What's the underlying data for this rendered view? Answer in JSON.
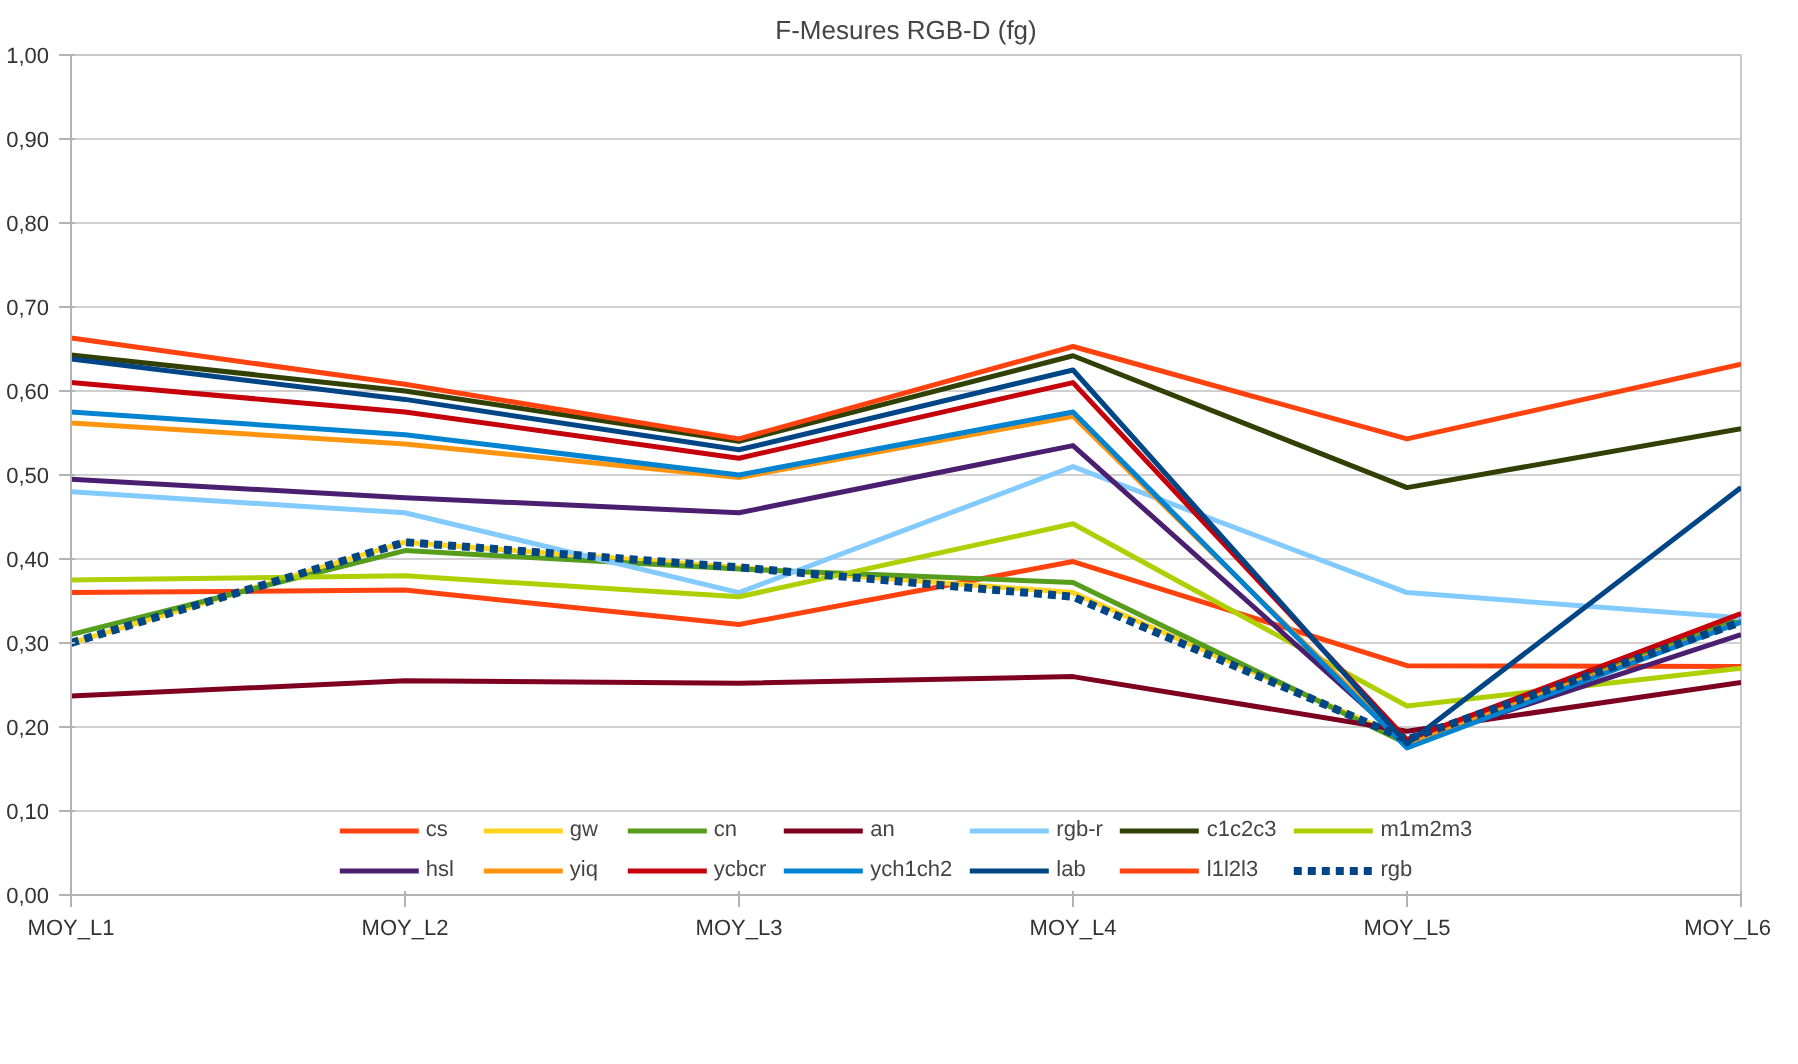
{
  "chart_data": {
    "type": "line",
    "title": "F-Mesures RGB-D (fg)",
    "categories": [
      "MOY_L1",
      "MOY_L2",
      "MOY_L3",
      "MOY_L4",
      "MOY_L5",
      "MOY_L6"
    ],
    "ylim": [
      0,
      1
    ],
    "yticks": [
      {
        "value": 0,
        "label": "0,00"
      },
      {
        "value": 0.1,
        "label": "0,10"
      },
      {
        "value": 0.2,
        "label": "0,20"
      },
      {
        "value": 0.3,
        "label": "0,30"
      },
      {
        "value": 0.4,
        "label": "0,40"
      },
      {
        "value": 0.5,
        "label": "0,50"
      },
      {
        "value": 0.6,
        "label": "0,60"
      },
      {
        "value": 0.7,
        "label": "0,70"
      },
      {
        "value": 0.8,
        "label": "0,80"
      },
      {
        "value": 0.9,
        "label": "0,90"
      },
      {
        "value": 1,
        "label": "1,00"
      }
    ],
    "grid": "y",
    "legend": "bottom",
    "marker": "none",
    "series": [
      {
        "name": "cs",
        "color": "#ff420e",
        "values": [
          0.36,
          0.363,
          0.322,
          0.397,
          0.273,
          0.272
        ]
      },
      {
        "name": "gw",
        "color": "#ffd320",
        "values": [
          0.3,
          0.42,
          0.39,
          0.36,
          0.185,
          null
        ]
      },
      {
        "name": "cn",
        "color": "#579d1c",
        "values": [
          0.31,
          0.41,
          0.388,
          0.372,
          0.18,
          0.33
        ]
      },
      {
        "name": "an",
        "color": "#7e0021",
        "values": [
          0.237,
          0.255,
          0.252,
          0.26,
          0.195,
          0.253
        ]
      },
      {
        "name": "rgb-r",
        "color": "#83caff",
        "values": [
          0.48,
          0.455,
          0.36,
          0.51,
          0.36,
          0.33
        ]
      },
      {
        "name": "c1c2c3",
        "color": "#314004",
        "values": [
          0.643,
          0.6,
          0.54,
          0.642,
          0.485,
          0.555
        ]
      },
      {
        "name": "m1m2m3",
        "color": "#aecf00",
        "values": [
          0.375,
          0.38,
          0.355,
          0.442,
          0.225,
          0.27
        ]
      },
      {
        "name": "hsl",
        "color": "#4b1f6f",
        "values": [
          0.495,
          0.473,
          0.455,
          0.535,
          0.18,
          0.31
        ]
      },
      {
        "name": "yiq",
        "color": "#ff950e",
        "values": [
          0.562,
          0.537,
          0.497,
          0.57,
          0.18,
          0.325
        ]
      },
      {
        "name": "ycbcr",
        "color": "#c5000b",
        "values": [
          0.61,
          0.575,
          0.52,
          0.61,
          0.185,
          0.335
        ]
      },
      {
        "name": "ych1ch2",
        "color": "#0084d1",
        "values": [
          0.575,
          0.548,
          0.5,
          0.575,
          0.175,
          0.325
        ]
      },
      {
        "name": "lab",
        "color": "#004586",
        "values": [
          0.638,
          0.59,
          0.53,
          0.625,
          0.18,
          0.485
        ]
      },
      {
        "name": "l1l2l3",
        "color": "#ff420e",
        "values": [
          0.663,
          0.608,
          0.543,
          0.653,
          0.543,
          0.632
        ]
      },
      {
        "name": "rgb",
        "color": "#004586",
        "line_style": "dashed",
        "values": [
          0.3,
          0.42,
          0.39,
          0.355,
          0.185,
          0.325
        ]
      }
    ]
  }
}
